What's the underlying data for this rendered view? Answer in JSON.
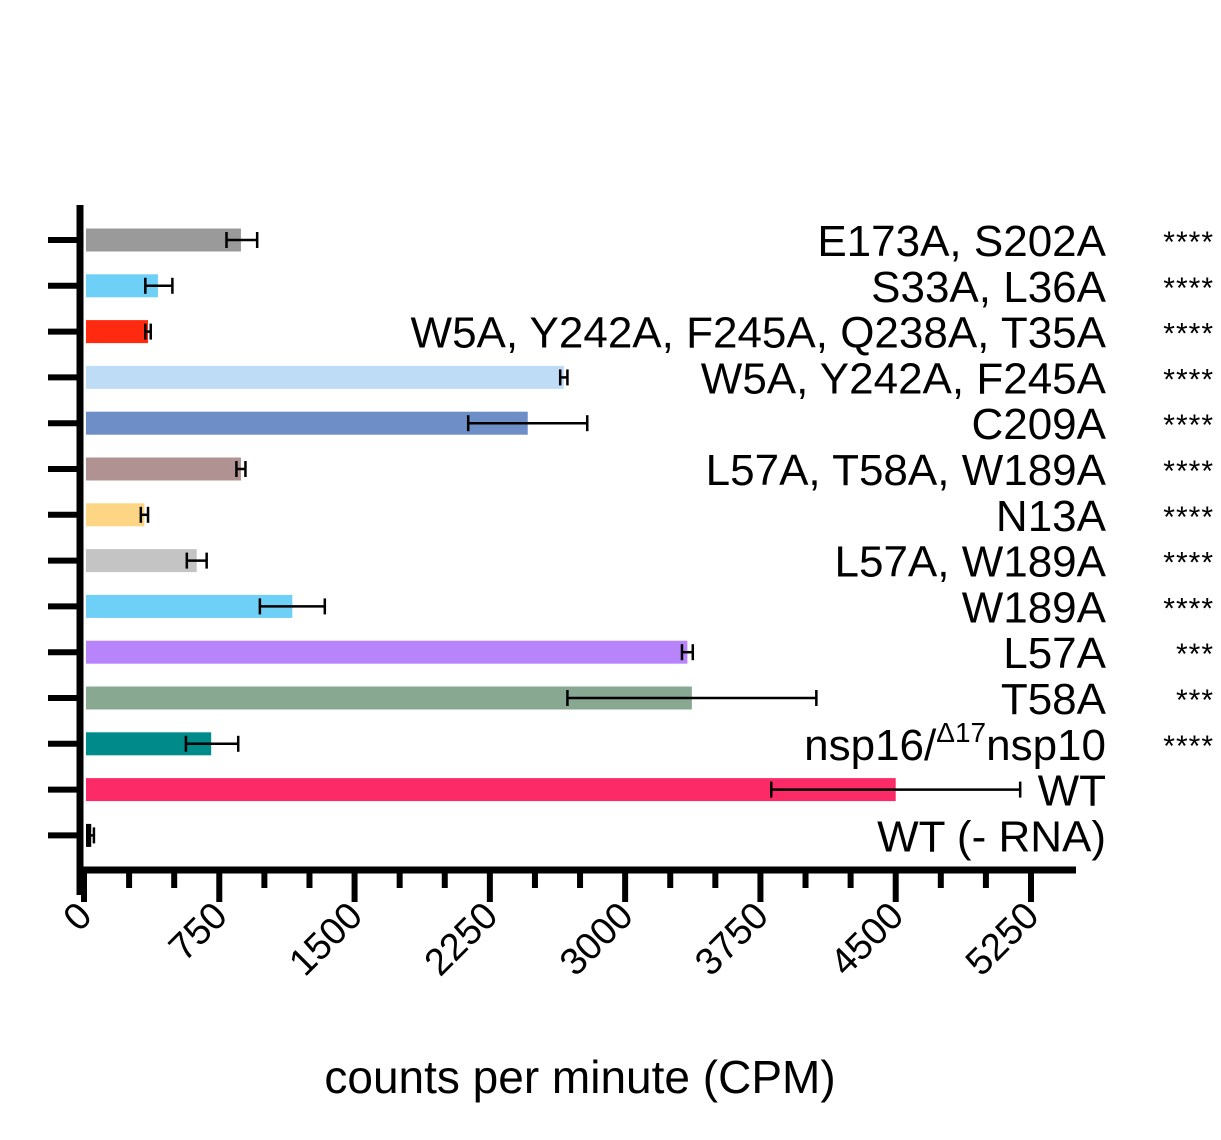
{
  "chart_data": {
    "type": "bar",
    "orientation": "horizontal",
    "xlabel": "counts per minute (CPM)",
    "xlim": [
      0,
      5250
    ],
    "xticks": [
      0,
      750,
      1500,
      2250,
      3000,
      3750,
      4500,
      5250
    ],
    "xtick_labels": [
      "0",
      "750",
      "1500",
      "2250",
      "3000",
      "3750",
      "4500",
      "5250"
    ],
    "grid": false,
    "categories": [
      {
        "label": "E173A, S202A",
        "value": 870,
        "error_low": 80,
        "error_high": 90,
        "significance": "****",
        "color": "#9a9a9a"
      },
      {
        "label": "S33A, L36A",
        "value": 410,
        "error_low": 70,
        "error_high": 80,
        "significance": "****",
        "color": "#6fd0f7"
      },
      {
        "label": "W5A, Y242A, F245A, Q238A, T35A",
        "value": 355,
        "error_low": 15,
        "error_high": 15,
        "significance": "****",
        "color": "#ff2a10"
      },
      {
        "label": "W5A, Y242A, F245A",
        "value": 2660,
        "error_low": 20,
        "error_high": 20,
        "significance": "****",
        "color": "#bfdcf7"
      },
      {
        "label": "C209A",
        "value": 2460,
        "error_low": 330,
        "error_high": 330,
        "significance": "****",
        "color": "#6d8ec6"
      },
      {
        "label": "L57A, T58A, W189A",
        "value": 870,
        "error_low": 25,
        "error_high": 25,
        "significance": "****",
        "color": "#b09292"
      },
      {
        "label": "N13A",
        "value": 335,
        "error_low": 20,
        "error_high": 20,
        "significance": "****",
        "color": "#fcd685"
      },
      {
        "label": "L57A, W189A",
        "value": 625,
        "error_low": 55,
        "error_high": 55,
        "significance": "****",
        "color": "#c4c4c4"
      },
      {
        "label": "W189A",
        "value": 1155,
        "error_low": 180,
        "error_high": 180,
        "significance": "****",
        "color": "#6fd0f7"
      },
      {
        "label": "L57A",
        "value": 3345,
        "error_low": 30,
        "error_high": 30,
        "significance": "***",
        "color": "#b884fc"
      },
      {
        "label": "T58A",
        "value": 3370,
        "error_low": 690,
        "error_high": 690,
        "significance": "***",
        "color": "#88a892"
      },
      {
        "label": "nsp16/",
        "label_sup": "Δ17",
        "label_tail": "nsp10",
        "value": 705,
        "error_low": 140,
        "error_high": 150,
        "significance": "****",
        "color": "#008b8b"
      },
      {
        "label": "WT",
        "value": 4500,
        "error_low": 690,
        "error_high": 690,
        "significance": "",
        "color": "#fd2a68"
      },
      {
        "label": "WT (- RNA)",
        "value": 40,
        "error_low": 15,
        "error_high": 15,
        "significance": "",
        "color": "#000000"
      }
    ]
  }
}
